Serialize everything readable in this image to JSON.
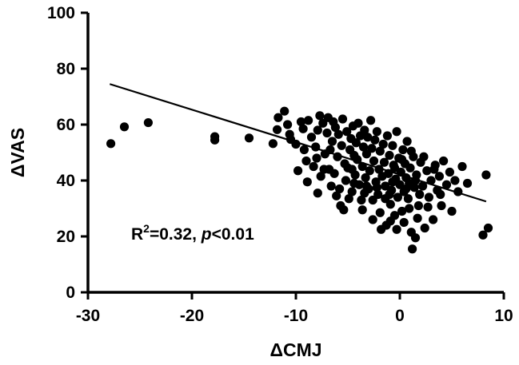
{
  "chart_data": {
    "type": "scatter",
    "xlabel": "ΔCMJ",
    "ylabel": "ΔVAS",
    "xlim": [
      -30,
      10
    ],
    "ylim": [
      0,
      100
    ],
    "xticks": [
      -30,
      -20,
      -10,
      0,
      10
    ],
    "yticks": [
      0,
      20,
      40,
      60,
      80,
      100
    ],
    "grid": false,
    "annotation": {
      "r": "R",
      "sup": "2",
      "rest": "=0.32, ",
      "p": "p",
      "tail": "<0.01"
    },
    "regression": {
      "x": [
        -27.9,
        8.3
      ],
      "y": [
        74.5,
        32.5
      ]
    },
    "points": [
      [
        -27.8,
        53.2
      ],
      [
        -26.5,
        59.2
      ],
      [
        -24.2,
        60.7
      ],
      [
        -17.8,
        54.5
      ],
      [
        -17.8,
        55.7
      ],
      [
        -14.5,
        55.2
      ],
      [
        -12.2,
        53.2
      ],
      [
        -11.8,
        58.2
      ],
      [
        -11.7,
        62.5
      ],
      [
        -11.1,
        64.8
      ],
      [
        -10.8,
        60.0
      ],
      [
        -10.6,
        56.5
      ],
      [
        -10.5,
        54.7
      ],
      [
        -10.0,
        53.0
      ],
      [
        -9.8,
        43.5
      ],
      [
        -9.5,
        61.0
      ],
      [
        -9.3,
        58.5
      ],
      [
        -9.0,
        47.0
      ],
      [
        -8.8,
        61.5
      ],
      [
        -8.5,
        55.5
      ],
      [
        -8.3,
        45.0
      ],
      [
        -8.1,
        52.0
      ],
      [
        -7.9,
        58.0
      ],
      [
        -7.7,
        63.2
      ],
      [
        -7.6,
        41.5
      ],
      [
        -7.4,
        60.5
      ],
      [
        -7.2,
        49.5
      ],
      [
        -7.0,
        57.0
      ],
      [
        -6.9,
        62.5
      ],
      [
        -6.8,
        44.0
      ],
      [
        -6.6,
        38.0
      ],
      [
        -6.5,
        54.0
      ],
      [
        -6.4,
        61.0
      ],
      [
        -6.2,
        59.0
      ],
      [
        -6.1,
        34.5
      ],
      [
        -6.0,
        48.5
      ],
      [
        -5.9,
        56.5
      ],
      [
        -5.7,
        31.0
      ],
      [
        -5.6,
        52.5
      ],
      [
        -5.5,
        62.0
      ],
      [
        -5.3,
        46.0
      ],
      [
        -5.2,
        40.0
      ],
      [
        -5.1,
        57.5
      ],
      [
        -5.0,
        44.5
      ],
      [
        -4.8,
        51.0
      ],
      [
        -4.7,
        55.0
      ],
      [
        -4.6,
        36.0
      ],
      [
        -4.5,
        59.5
      ],
      [
        -4.4,
        49.0
      ],
      [
        -4.3,
        42.0
      ],
      [
        -4.2,
        53.5
      ],
      [
        -4.1,
        47.5
      ],
      [
        -4.0,
        60.5
      ],
      [
        -3.9,
        38.5
      ],
      [
        -3.8,
        56.0
      ],
      [
        -3.7,
        33.0
      ],
      [
        -3.6,
        45.0
      ],
      [
        -3.5,
        52.0
      ],
      [
        -3.4,
        58.0
      ],
      [
        -3.3,
        41.0
      ],
      [
        -3.2,
        49.5
      ],
      [
        -3.1,
        55.5
      ],
      [
        -3.0,
        37.0
      ],
      [
        -2.9,
        43.5
      ],
      [
        -2.8,
        61.5
      ],
      [
        -2.7,
        51.5
      ],
      [
        -2.6,
        26.0
      ],
      [
        -2.5,
        47.0
      ],
      [
        -2.4,
        54.5
      ],
      [
        -2.3,
        39.5
      ],
      [
        -2.2,
        57.5
      ],
      [
        -2.1,
        35.0
      ],
      [
        -2.0,
        44.0
      ],
      [
        -1.9,
        50.5
      ],
      [
        -1.8,
        22.5
      ],
      [
        -1.7,
        41.5
      ],
      [
        -1.6,
        53.0
      ],
      [
        -1.5,
        46.5
      ],
      [
        -1.4,
        38.0
      ],
      [
        -1.3,
        24.0
      ],
      [
        -1.2,
        56.0
      ],
      [
        -1.1,
        42.5
      ],
      [
        -1.0,
        49.0
      ],
      [
        -0.9,
        31.5
      ],
      [
        -0.8,
        36.5
      ],
      [
        -0.7,
        52.5
      ],
      [
        -0.6,
        45.5
      ],
      [
        -0.5,
        27.5
      ],
      [
        -0.4,
        40.5
      ],
      [
        -0.3,
        57.5
      ],
      [
        -0.2,
        34.0
      ],
      [
        -0.1,
        48.0
      ],
      [
        0.0,
        38.5
      ],
      [
        0.1,
        43.0
      ],
      [
        0.2,
        29.0
      ],
      [
        0.3,
        51.0
      ],
      [
        0.4,
        36.0
      ],
      [
        0.5,
        46.0
      ],
      [
        0.6,
        41.0
      ],
      [
        0.7,
        54.0
      ],
      [
        0.8,
        33.5
      ],
      [
        0.9,
        39.0
      ],
      [
        1.0,
        44.5
      ],
      [
        1.1,
        21.5
      ],
      [
        1.2,
        15.5
      ],
      [
        1.3,
        48.5
      ],
      [
        1.4,
        37.5
      ],
      [
        1.5,
        19.5
      ],
      [
        1.6,
        42.0
      ],
      [
        1.7,
        26.5
      ],
      [
        1.8,
        31.0
      ],
      [
        2.0,
        46.5
      ],
      [
        2.2,
        38.0
      ],
      [
        2.4,
        23.0
      ],
      [
        2.6,
        43.5
      ],
      [
        2.8,
        34.0
      ],
      [
        3.0,
        40.0
      ],
      [
        3.2,
        26.0
      ],
      [
        3.4,
        45.5
      ],
      [
        3.6,
        36.5
      ],
      [
        3.8,
        41.5
      ],
      [
        4.0,
        31.0
      ],
      [
        4.2,
        47.0
      ],
      [
        4.5,
        38.5
      ],
      [
        4.8,
        43.0
      ],
      [
        5.0,
        29.0
      ],
      [
        5.3,
        40.0
      ],
      [
        5.6,
        36.0
      ],
      [
        6.0,
        45.0
      ],
      [
        6.5,
        39.0
      ],
      [
        8.0,
        20.5
      ],
      [
        8.3,
        42.0
      ],
      [
        8.5,
        23.0
      ],
      [
        -8.9,
        39.5
      ],
      [
        -7.9,
        35.5
      ],
      [
        -6.7,
        51.0
      ],
      [
        -5.4,
        29.5
      ],
      [
        -4.9,
        33.5
      ],
      [
        -3.6,
        29.5
      ],
      [
        -2.6,
        33.0
      ],
      [
        -1.9,
        28.5
      ],
      [
        -0.9,
        25.5
      ],
      [
        -0.3,
        22.5
      ],
      [
        0.4,
        25.0
      ],
      [
        0.9,
        30.0
      ],
      [
        1.9,
        35.0
      ],
      [
        2.7,
        30.5
      ],
      [
        3.9,
        35.0
      ],
      [
        -6.3,
        42.5
      ],
      [
        -5.8,
        37.0
      ],
      [
        -4.4,
        39.0
      ],
      [
        -3.4,
        35.5
      ],
      [
        -2.2,
        37.5
      ],
      [
        -1.0,
        35.0
      ],
      [
        -0.5,
        44.5
      ],
      [
        0.2,
        47.5
      ],
      [
        1.1,
        50.5
      ],
      [
        2.3,
        48.5
      ],
      [
        -9.2,
        51.0
      ],
      [
        -8.0,
        48.0
      ],
      [
        -7.3,
        44.0
      ],
      [
        -4.6,
        44.0
      ],
      [
        -3.2,
        38.0
      ],
      [
        -1.4,
        33.5
      ],
      [
        -0.7,
        39.5
      ],
      [
        0.6,
        37.0
      ],
      [
        1.5,
        40.0
      ],
      [
        3.3,
        44.0
      ]
    ]
  }
}
